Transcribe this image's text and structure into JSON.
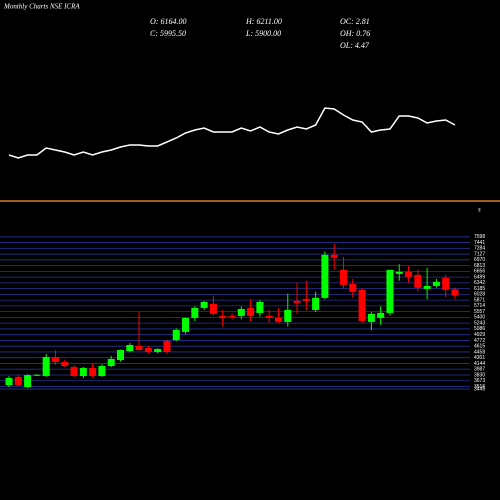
{
  "chart_data": {
    "type": "candlestick",
    "title": "Monthly Charts NSE ICRA",
    "stats": [
      "O: 6164.00",
      "H: 6211.00",
      "OC: 2.81",
      "C: 5995.50",
      "L: 5900.00",
      "OH: 0.76",
      "OL: 4.47"
    ],
    "marker_label": "s",
    "up_color": "#00ff00",
    "down_color": "#ff0000",
    "grid_color": "#27359a",
    "line_color": "#ffffff",
    "divider_color": "#e07b2a",
    "open": [
      3555,
      3774,
      3500,
      3830,
      3801,
      4320,
      4183,
      4046,
      3801,
      4019,
      3801,
      4074,
      4238,
      4483,
      4620,
      4565,
      4456,
      4757,
      4784,
      5003,
      5385,
      5658,
      5768,
      5440,
      5440,
      5440,
      5658,
      5522,
      5440,
      5385,
      5276,
      5850,
      5904,
      5604,
      5932,
      7106,
      6696,
      6314,
      6150,
      5276,
      5385,
      5522,
      6587,
      6642,
      6560,
      6177,
      6259,
      6478,
      6164
    ],
    "high": [
      3800,
      3830,
      3850,
      3850,
      4400,
      4500,
      4250,
      4100,
      4050,
      4150,
      4120,
      4350,
      4520,
      4700,
      5550,
      4620,
      4560,
      4800,
      5100,
      5400,
      5700,
      5850,
      6000,
      5600,
      5520,
      5700,
      5900,
      5870,
      5600,
      5650,
      6050,
      6350,
      6400,
      6100,
      7200,
      7400,
      7050,
      6450,
      6200,
      5550,
      5700,
      6700,
      6850,
      6800,
      6700,
      6750,
      6450,
      6560,
      6211
    ],
    "low": [
      3500,
      3530,
      3480,
      3800,
      3780,
      4100,
      4050,
      3780,
      3750,
      3760,
      3780,
      4040,
      4200,
      4450,
      4500,
      4400,
      4420,
      4400,
      4750,
      4950,
      5300,
      5600,
      5450,
      5150,
      5350,
      5350,
      5300,
      5420,
      5250,
      5250,
      5150,
      5500,
      5600,
      5550,
      5900,
      6700,
      6180,
      5950,
      5250,
      5050,
      5200,
      5450,
      6400,
      6350,
      6100,
      5900,
      6220,
      5950,
      5900
    ],
    "close": [
      3746,
      3555,
      3828,
      3835,
      4320,
      4183,
      4074,
      3801,
      4019,
      3801,
      4074,
      4265,
      4511,
      4647,
      4511,
      4456,
      4538,
      4456,
      5057,
      5385,
      5658,
      5822,
      5494,
      5385,
      5412,
      5631,
      5440,
      5822,
      5385,
      5276,
      5604,
      5795,
      5850,
      5932,
      7106,
      7024,
      6287,
      6095,
      5303,
      5494,
      5522,
      6696,
      6642,
      6505,
      6205,
      6259,
      6369,
      6150,
      5995.5
    ],
    "line_values": [
      5,
      2,
      5,
      5,
      12,
      10,
      8,
      5,
      8,
      5,
      8,
      10,
      13,
      15,
      15,
      14,
      14,
      18,
      22,
      27,
      30,
      32,
      28,
      28,
      28,
      32,
      29,
      33,
      28,
      26,
      30,
      33,
      31,
      35,
      52,
      51,
      45,
      40,
      38,
      28,
      30,
      31,
      44,
      44,
      42,
      37,
      39,
      40,
      35
    ],
    "line_ylim": [
      0,
      60
    ],
    "ylim": [
      3420,
      7620
    ],
    "yticks": [
      7598,
      7441,
      7284,
      7127,
      6970,
      6813,
      6656,
      6499,
      6342,
      6185,
      6028,
      5871,
      5714,
      5557,
      5400,
      5243,
      5086,
      4929,
      4772,
      4615,
      4458,
      4301,
      4144,
      3987,
      3830,
      3673,
      3516,
      3445
    ]
  }
}
